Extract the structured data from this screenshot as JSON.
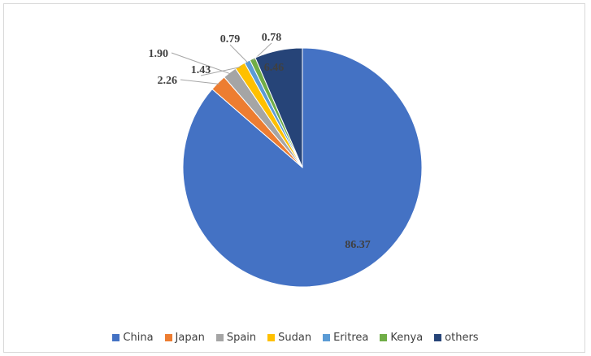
{
  "chart_data": {
    "type": "pie",
    "title": "",
    "categories": [
      "China",
      "Japan",
      "Spain",
      "Sudan",
      "Eritrea",
      "Kenya",
      "others"
    ],
    "values": [
      86.37,
      2.26,
      1.9,
      1.43,
      0.79,
      0.78,
      6.46
    ],
    "value_labels": [
      "86.37",
      "2.26",
      "1.90",
      "1.43",
      "0.79",
      "0.78",
      "6.46"
    ],
    "colors": [
      "#4472C4",
      "#ED7D31",
      "#A5A5A5",
      "#FFC000",
      "#5B9BD5",
      "#70AD47",
      "#264478"
    ],
    "start": "12 o'clock",
    "direction": "clockwise",
    "legend": "bottom"
  }
}
